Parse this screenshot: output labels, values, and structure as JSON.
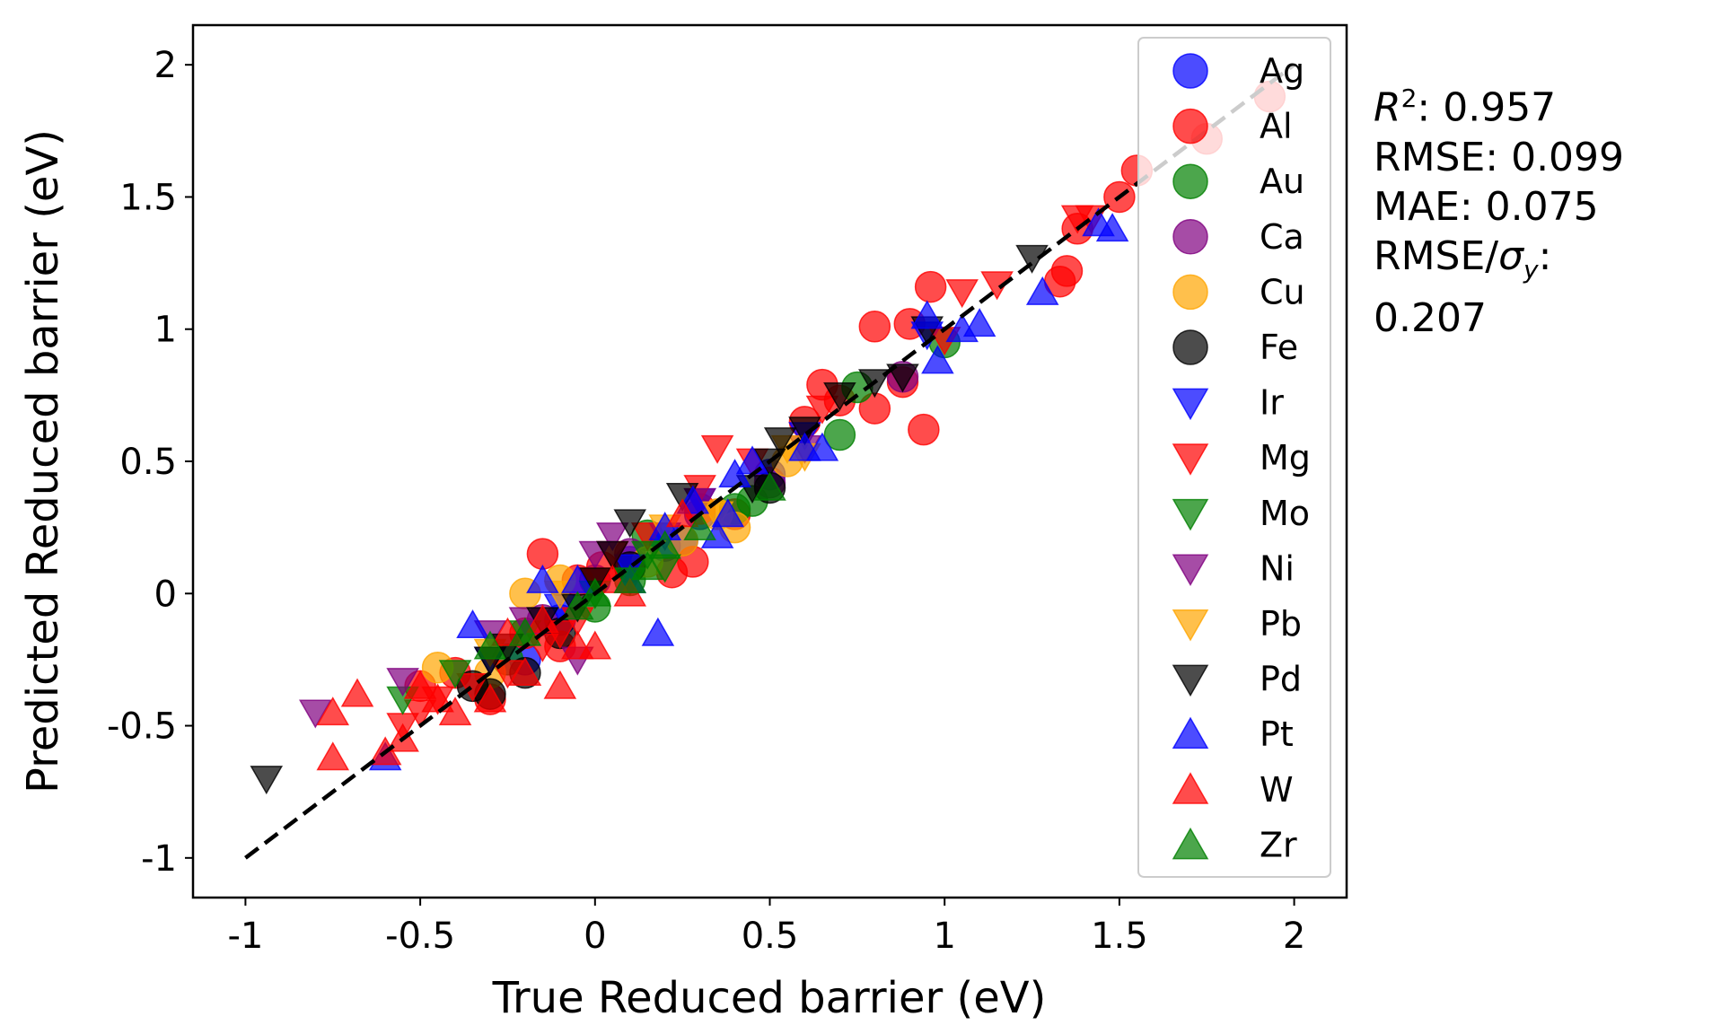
{
  "chart_data": {
    "type": "scatter",
    "xlabel": "True Reduced barrier (eV)",
    "ylabel": "Predicted Reduced barrier (eV)",
    "xlim": [
      -1.15,
      2.15
    ],
    "ylim": [
      -1.15,
      2.15
    ],
    "x_ticks": [
      -1,
      -0.5,
      0,
      0.5,
      1,
      1.5,
      2
    ],
    "y_ticks": [
      -1,
      -0.5,
      0,
      0.5,
      1,
      1.5,
      2
    ],
    "x_tick_labels": [
      "-1",
      "-0.5",
      "0",
      "0.5",
      "1",
      "1.5",
      "2"
    ],
    "y_tick_labels": [
      "-1",
      "-0.5",
      "0",
      "0.5",
      "1",
      "1.5",
      "2"
    ],
    "grid": false,
    "legend_position": "top-right",
    "reference_line": {
      "x": [
        -1,
        2
      ],
      "y": [
        -1,
        2
      ],
      "color": "#000000",
      "style": "dashed"
    },
    "series": [
      {
        "name": "Ag",
        "marker": "circle",
        "color": "#0000ff",
        "points": [
          [
            0.1,
            0.12
          ],
          [
            0.2,
            0.18
          ],
          [
            0.3,
            0.3
          ],
          [
            -0.1,
            -0.1
          ],
          [
            0.5,
            0.45
          ],
          [
            0.0,
            0.05
          ],
          [
            0.25,
            0.2
          ],
          [
            -0.2,
            -0.25
          ]
        ]
      },
      {
        "name": "Al",
        "marker": "circle",
        "color": "#ff0000",
        "points": [
          [
            1.93,
            1.88
          ],
          [
            1.75,
            1.72
          ],
          [
            1.55,
            1.6
          ],
          [
            1.5,
            1.5
          ],
          [
            1.38,
            1.38
          ],
          [
            1.35,
            1.22
          ],
          [
            1.33,
            1.18
          ],
          [
            0.96,
            1.16
          ],
          [
            0.8,
            1.01
          ],
          [
            0.9,
            1.02
          ],
          [
            0.65,
            0.79
          ],
          [
            0.7,
            0.73
          ],
          [
            0.8,
            0.7
          ],
          [
            0.94,
            0.62
          ],
          [
            0.88,
            0.8
          ],
          [
            0.3,
            0.32
          ],
          [
            0.22,
            0.08
          ],
          [
            0.28,
            0.12
          ],
          [
            -0.15,
            0.15
          ],
          [
            -0.05,
            0.05
          ],
          [
            -0.3,
            -0.4
          ],
          [
            -0.5,
            -0.35
          ],
          [
            -0.4,
            -0.3
          ],
          [
            -0.2,
            -0.15
          ],
          [
            -0.1,
            -0.2
          ],
          [
            0.4,
            0.3
          ],
          [
            0.6,
            0.65
          ],
          [
            0.02,
            0.1
          ]
        ]
      },
      {
        "name": "Au",
        "marker": "circle",
        "color": "#008000",
        "points": [
          [
            1.0,
            0.95
          ],
          [
            0.75,
            0.78
          ],
          [
            0.7,
            0.6
          ],
          [
            0.45,
            0.35
          ],
          [
            0.4,
            0.32
          ],
          [
            0.15,
            0.22
          ],
          [
            0.1,
            0.05
          ],
          [
            -0.25,
            -0.25
          ],
          [
            0.0,
            -0.05
          ]
        ]
      },
      {
        "name": "Ca",
        "marker": "circle",
        "color": "#800080",
        "points": [
          [
            0.88,
            0.82
          ],
          [
            -0.15,
            -0.1
          ],
          [
            0.5,
            0.42
          ],
          [
            0.1,
            0.15
          ]
        ]
      },
      {
        "name": "Cu",
        "marker": "circle",
        "color": "#ffa500",
        "points": [
          [
            0.4,
            0.25
          ],
          [
            0.35,
            0.3
          ],
          [
            -0.45,
            -0.28
          ],
          [
            -0.2,
            0.0
          ],
          [
            -0.1,
            0.05
          ],
          [
            0.15,
            0.12
          ],
          [
            0.55,
            0.5
          ],
          [
            -0.3,
            -0.3
          ],
          [
            0.25,
            0.2
          ]
        ]
      },
      {
        "name": "Fe",
        "marker": "circle",
        "color": "#000000",
        "points": [
          [
            -0.3,
            -0.38
          ],
          [
            -0.2,
            -0.3
          ],
          [
            -0.35,
            -0.35
          ],
          [
            0.5,
            0.4
          ],
          [
            0.1,
            0.1
          ],
          [
            -0.1,
            -0.15
          ]
        ]
      },
      {
        "name": "Ir",
        "marker": "triangle-down",
        "color": "#0000ff",
        "points": [
          [
            0.95,
            0.98
          ],
          [
            0.6,
            0.6
          ],
          [
            0.3,
            0.35
          ],
          [
            0.1,
            0.1
          ],
          [
            -0.1,
            -0.05
          ],
          [
            0.2,
            0.22
          ],
          [
            -0.3,
            -0.25
          ]
        ]
      },
      {
        "name": "Mg",
        "marker": "triangle-down",
        "color": "#ff0000",
        "points": [
          [
            1.42,
            1.42
          ],
          [
            1.38,
            1.42
          ],
          [
            1.15,
            1.17
          ],
          [
            1.05,
            1.14
          ],
          [
            1.0,
            0.96
          ],
          [
            0.65,
            0.7
          ],
          [
            0.35,
            0.55
          ],
          [
            0.3,
            0.4
          ],
          [
            0.15,
            0.22
          ],
          [
            0.05,
            0.15
          ],
          [
            0.0,
            0.05
          ],
          [
            -0.05,
            -0.1
          ],
          [
            -0.15,
            -0.2
          ],
          [
            -0.25,
            -0.3
          ],
          [
            -0.35,
            -0.35
          ],
          [
            -0.45,
            -0.4
          ],
          [
            -0.5,
            -0.45
          ],
          [
            -0.55,
            -0.5
          ],
          [
            -0.1,
            -0.15
          ],
          [
            0.45,
            0.5
          ]
        ]
      },
      {
        "name": "Mo",
        "marker": "triangle-down",
        "color": "#008000",
        "points": [
          [
            0.15,
            0.15
          ],
          [
            0.2,
            0.1
          ],
          [
            -0.2,
            -0.15
          ],
          [
            -0.55,
            -0.4
          ],
          [
            -0.4,
            -0.3
          ],
          [
            0.0,
            0.0
          ],
          [
            0.1,
            0.05
          ]
        ]
      },
      {
        "name": "Ni",
        "marker": "triangle-down",
        "color": "#800080",
        "points": [
          [
            -0.8,
            -0.45
          ],
          [
            -0.55,
            -0.33
          ],
          [
            0.05,
            0.22
          ],
          [
            0.0,
            0.15
          ],
          [
            0.6,
            0.55
          ],
          [
            0.3,
            0.35
          ],
          [
            -0.2,
            -0.1
          ],
          [
            -0.3,
            -0.15
          ],
          [
            -0.05,
            -0.25
          ]
        ]
      },
      {
        "name": "Pb",
        "marker": "triangle-down",
        "color": "#ffa500",
        "points": [
          [
            0.6,
            0.52
          ],
          [
            0.55,
            0.55
          ],
          [
            0.2,
            0.25
          ],
          [
            -0.1,
            0.0
          ],
          [
            0.35,
            0.3
          ],
          [
            -0.3,
            -0.22
          ]
        ]
      },
      {
        "name": "Pd",
        "marker": "triangle-down",
        "color": "#000000",
        "points": [
          [
            -0.94,
            -0.7
          ],
          [
            1.25,
            1.27
          ],
          [
            0.88,
            0.82
          ],
          [
            0.8,
            0.8
          ],
          [
            0.7,
            0.75
          ],
          [
            0.6,
            0.62
          ],
          [
            0.53,
            0.58
          ],
          [
            0.5,
            0.5
          ],
          [
            0.25,
            0.37
          ],
          [
            0.1,
            0.27
          ],
          [
            0.05,
            0.15
          ],
          [
            0.0,
            0.05
          ],
          [
            -0.05,
            -0.05
          ],
          [
            -0.15,
            -0.1
          ],
          [
            -0.25,
            -0.2
          ],
          [
            -0.3,
            -0.25
          ],
          [
            0.95,
            1.0
          ],
          [
            0.45,
            0.4
          ]
        ]
      },
      {
        "name": "Pt",
        "marker": "triangle-up",
        "color": "#0000ff",
        "points": [
          [
            1.48,
            1.38
          ],
          [
            1.44,
            1.4
          ],
          [
            1.28,
            1.14
          ],
          [
            1.1,
            1.02
          ],
          [
            1.05,
            1.0
          ],
          [
            0.98,
            0.88
          ],
          [
            0.95,
            1.05
          ],
          [
            0.6,
            0.55
          ],
          [
            0.45,
            0.5
          ],
          [
            0.4,
            0.45
          ],
          [
            0.38,
            0.3
          ],
          [
            0.35,
            0.22
          ],
          [
            0.28,
            0.35
          ],
          [
            0.18,
            -0.15
          ],
          [
            0.2,
            0.25
          ],
          [
            0.1,
            0.05
          ],
          [
            -0.05,
            0.05
          ],
          [
            -0.15,
            0.05
          ],
          [
            -0.35,
            -0.12
          ],
          [
            -0.6,
            -0.62
          ],
          [
            0.65,
            0.55
          ]
        ]
      },
      {
        "name": "W",
        "marker": "triangle-up",
        "color": "#ff0000",
        "points": [
          [
            -0.75,
            -0.45
          ],
          [
            -0.75,
            -0.62
          ],
          [
            -0.68,
            -0.38
          ],
          [
            -0.5,
            -0.35
          ],
          [
            -0.45,
            -0.4
          ],
          [
            -0.4,
            -0.45
          ],
          [
            -0.3,
            -0.4
          ],
          [
            -0.2,
            -0.3
          ],
          [
            -0.1,
            -0.35
          ],
          [
            -0.05,
            -0.2
          ],
          [
            0.0,
            -0.2
          ],
          [
            -0.15,
            -0.1
          ],
          [
            0.1,
            0.0
          ],
          [
            0.05,
            0.05
          ],
          [
            -0.55,
            -0.55
          ],
          [
            -0.6,
            -0.6
          ],
          [
            0.25,
            0.3
          ],
          [
            -0.25,
            -0.15
          ]
        ]
      },
      {
        "name": "Zr",
        "marker": "triangle-up",
        "color": "#008000",
        "points": [
          [
            0.2,
            0.18
          ],
          [
            0.15,
            0.1
          ],
          [
            0.1,
            0.05
          ],
          [
            0.0,
            0.0
          ],
          [
            -0.3,
            -0.2
          ],
          [
            -0.2,
            -0.15
          ],
          [
            0.5,
            0.4
          ],
          [
            0.3,
            0.25
          ],
          [
            -0.05,
            -0.05
          ]
        ]
      }
    ]
  },
  "metrics": {
    "r2_symbol": "R",
    "r2_sup": "2",
    "r2_value": ": 0.957",
    "rmse": "RMSE: 0.099",
    "mae": "MAE: 0.075",
    "rmse_sigma_prefix": "RMSE/",
    "sigma_symbol": "σ",
    "sigma_sub": "y",
    "rmse_sigma_colon": ":",
    "rmse_sigma_value": "0.207"
  }
}
